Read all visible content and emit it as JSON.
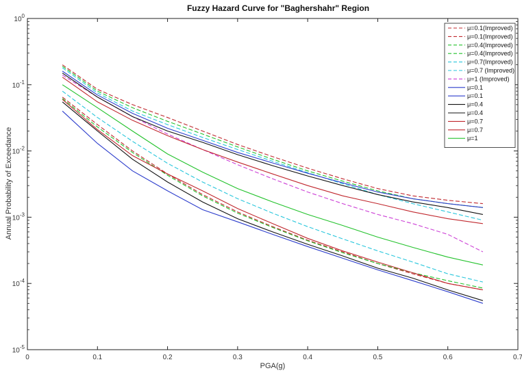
{
  "chart_data": {
    "type": "line",
    "title": "Fuzzy Hazard Curve for \"Baghershahr\" Region",
    "xlabel": "PGA(g)",
    "ylabel": "Annual Probability of Exceedance",
    "xlim": [
      0,
      0.7
    ],
    "ylim": [
      1e-05,
      1
    ],
    "yscale": "log",
    "grid": false,
    "legend_position": "top-right",
    "x_ticks": [
      0,
      0.1,
      0.2,
      0.3,
      0.4,
      0.5,
      0.6,
      0.7
    ],
    "x_tick_labels": [
      "0",
      "0.1",
      "0.2",
      "0.3",
      "0.4",
      "0.5",
      "0.6",
      "0.7"
    ],
    "y_ticks": [
      1e-05,
      0.0001,
      0.001,
      0.01,
      0.1,
      1
    ],
    "y_tick_exponents": [
      "-5",
      "-4",
      "-3",
      "-2",
      "-1",
      "0"
    ],
    "y_tick_base": "10",
    "x": [
      0.05,
      0.1,
      0.15,
      0.2,
      0.25,
      0.3,
      0.35,
      0.4,
      0.45,
      0.5,
      0.55,
      0.6,
      0.65
    ],
    "series": [
      {
        "name": "μ=0.1(Improved)",
        "color": "#c0272d",
        "dash": true,
        "values": [
          0.2,
          0.085,
          0.05,
          0.032,
          0.02,
          0.0125,
          0.0082,
          0.0055,
          0.0038,
          0.0027,
          0.0021,
          0.0018,
          0.0016
        ]
      },
      {
        "name": "μ=0.1(Improved)",
        "color": "#c0272d",
        "dash": true,
        "values": [
          0.065,
          0.025,
          0.01,
          0.0045,
          0.0022,
          0.0012,
          0.00072,
          0.00045,
          0.0003,
          0.0002,
          0.00014,
          0.0001,
          8e-05
        ]
      },
      {
        "name": "μ=0.4(Improved)",
        "color": "#22c22b",
        "dash": true,
        "values": [
          0.19,
          0.08,
          0.045,
          0.028,
          0.018,
          0.0115,
          0.0075,
          0.005,
          0.0035,
          0.0025,
          0.0019,
          0.0016,
          0.0014
        ]
      },
      {
        "name": "μ=0.4(Improved)",
        "color": "#22c22b",
        "dash": true,
        "values": [
          0.062,
          0.023,
          0.0095,
          0.0043,
          0.0021,
          0.00115,
          0.0007,
          0.00044,
          0.00029,
          0.0002,
          0.000145,
          0.00011,
          8.5e-05
        ]
      },
      {
        "name": "μ=0.7(Improved)",
        "color": "#27c6dc",
        "dash": true,
        "values": [
          0.18,
          0.075,
          0.04,
          0.025,
          0.016,
          0.0105,
          0.007,
          0.0047,
          0.0032,
          0.0022,
          0.0016,
          0.0012,
          0.0009
        ]
      },
      {
        "name": "μ=0.7 (Improved)",
        "color": "#27c6dc",
        "dash": true,
        "values": [
          0.08,
          0.032,
          0.014,
          0.0065,
          0.0034,
          0.0019,
          0.00115,
          0.00072,
          0.00047,
          0.00031,
          0.00021,
          0.00014,
          0.000105
        ]
      },
      {
        "name": "μ=1  (Improved)",
        "color": "#cc3fd6",
        "dash": true,
        "values": [
          0.14,
          0.065,
          0.033,
          0.018,
          0.0105,
          0.0062,
          0.0038,
          0.0024,
          0.0016,
          0.0011,
          0.0008,
          0.00055,
          0.0003
        ]
      },
      {
        "name": "μ=0.1",
        "color": "#2b3ccc",
        "dash": false,
        "values": [
          0.04,
          0.013,
          0.005,
          0.0025,
          0.0013,
          0.00085,
          0.00055,
          0.00036,
          0.00024,
          0.00016,
          0.00011,
          7.5e-05,
          5e-05
        ]
      },
      {
        "name": "μ=0.1",
        "color": "#2b3ccc",
        "dash": false,
        "values": [
          0.16,
          0.07,
          0.037,
          0.022,
          0.0145,
          0.0095,
          0.0066,
          0.0046,
          0.0033,
          0.0024,
          0.0019,
          0.0016,
          0.0014
        ]
      },
      {
        "name": "μ=0.4",
        "color": "#111111",
        "dash": false,
        "values": [
          0.055,
          0.02,
          0.0075,
          0.0034,
          0.0017,
          0.00095,
          0.0006,
          0.00039,
          0.00026,
          0.00017,
          0.00012,
          8e-05,
          5.5e-05
        ]
      },
      {
        "name": "μ=0.4",
        "color": "#111111",
        "dash": false,
        "values": [
          0.15,
          0.065,
          0.033,
          0.02,
          0.0135,
          0.0088,
          0.006,
          0.0042,
          0.003,
          0.0022,
          0.0017,
          0.0014,
          0.0011
        ]
      },
      {
        "name": "μ=0.7",
        "color": "#c0272d",
        "dash": false,
        "values": [
          0.06,
          0.021,
          0.0085,
          0.0045,
          0.0025,
          0.00135,
          0.0008,
          0.00048,
          0.00031,
          0.00021,
          0.000145,
          0.0001,
          8e-05
        ]
      },
      {
        "name": "μ=0.7",
        "color": "#c0272d",
        "dash": false,
        "values": [
          0.13,
          0.055,
          0.029,
          0.017,
          0.0105,
          0.0068,
          0.0045,
          0.003,
          0.0021,
          0.0016,
          0.0012,
          0.00095,
          0.0008
        ]
      },
      {
        "name": "μ=1",
        "color": "#22c22b",
        "dash": false,
        "values": [
          0.1,
          0.045,
          0.02,
          0.009,
          0.0048,
          0.0027,
          0.0017,
          0.0011,
          0.00075,
          0.0005,
          0.00035,
          0.00025,
          0.00019
        ]
      }
    ]
  }
}
